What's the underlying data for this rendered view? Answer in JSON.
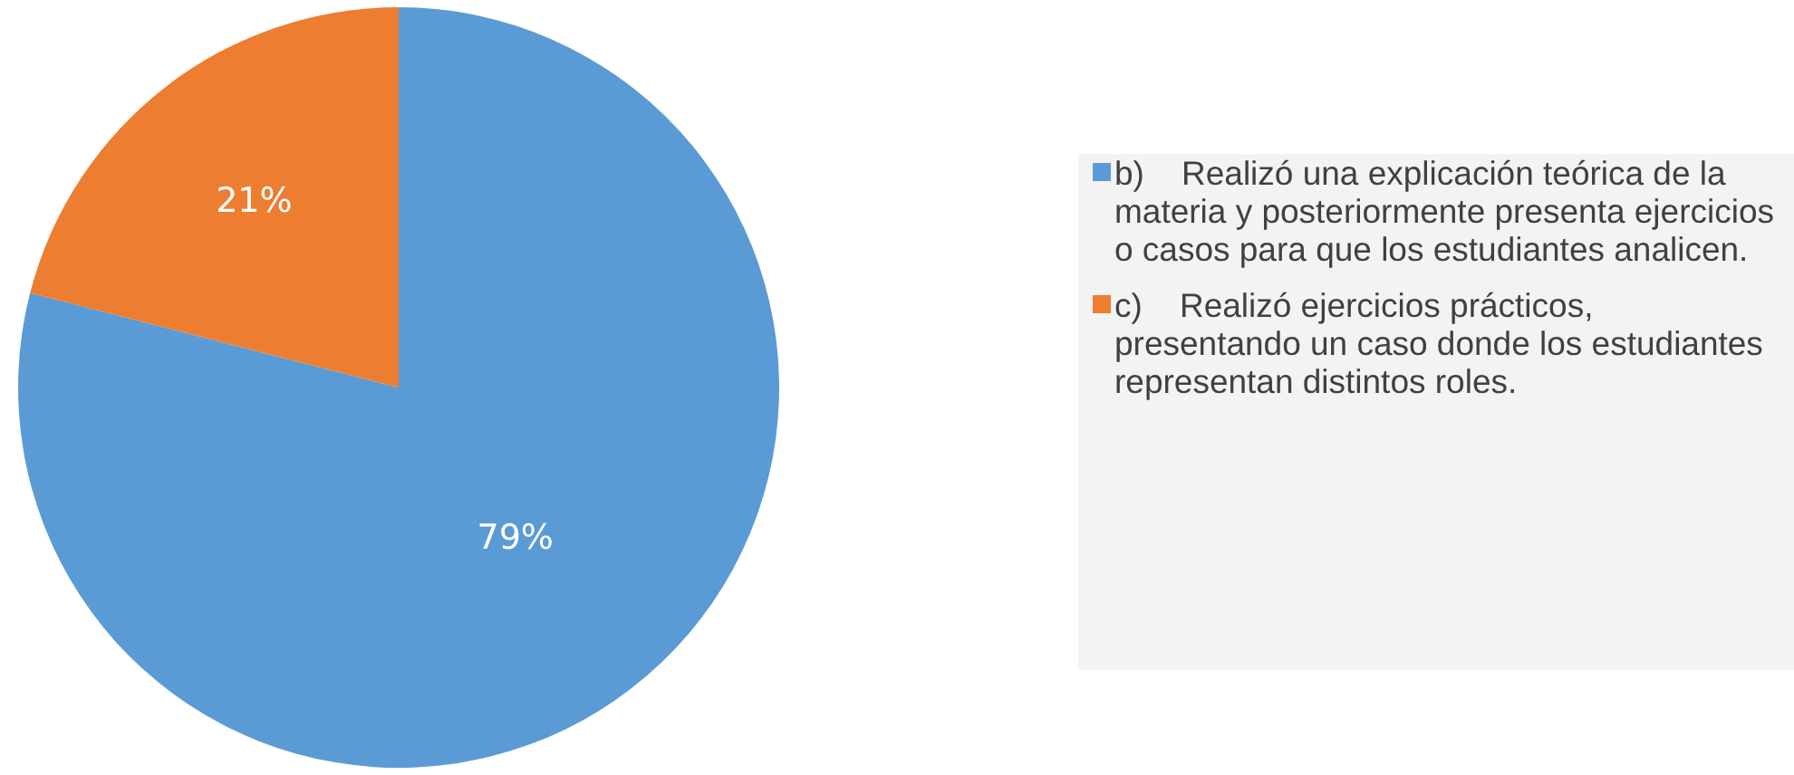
{
  "chart_data": {
    "type": "pie",
    "categories": [
      "b)    Realizó una explicación teórica de la materia y posteriormente presenta ejercicios o casos para que los estudiantes analicen.",
      "c)    Realizó ejercicios prácticos, presentando un caso donde los estudiantes representan distintos roles."
    ],
    "values": [
      79,
      21
    ],
    "colors": [
      "#5b9bd5",
      "#ed7d31"
    ],
    "value_labels": [
      "79%",
      "21%"
    ],
    "legend": "right"
  }
}
